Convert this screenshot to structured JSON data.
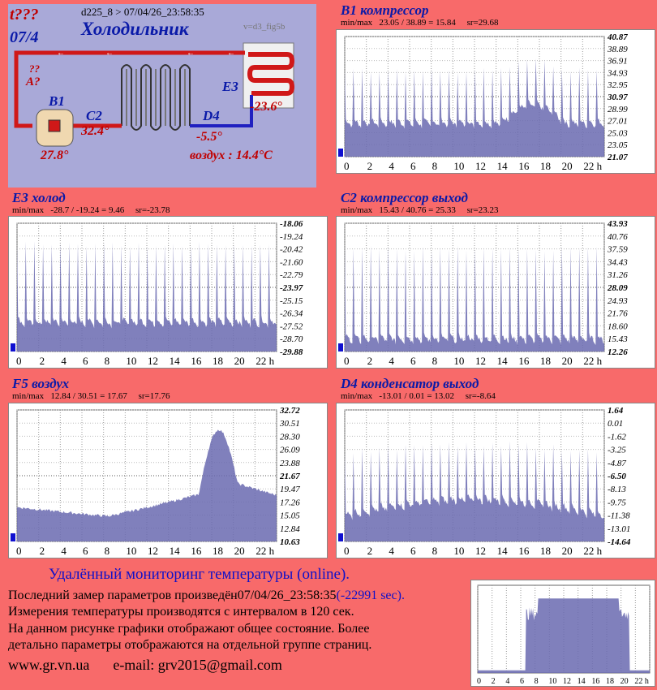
{
  "diagram": {
    "alert": "t???",
    "date": "07/4",
    "device_line": "d225_8  >  07/04/26_23:58:35",
    "version": "v=d3_fig5b",
    "title": "Холодильник",
    "question": "??",
    "a_label": "A?",
    "b1_label": "B1",
    "b1_value": "27.8°",
    "c2_label": "C2",
    "c2_value": "32.4°",
    "d4_label": "D4",
    "d4_value": "-5.5°",
    "e3_label": "E3",
    "e3_value": "-23.6°",
    "air_text": "воздух : 14.4°C",
    "colors": {
      "hot": "#d01818",
      "cold": "#2020c0",
      "bg": "#a9a9d8"
    }
  },
  "panels": [
    {
      "title": "B1 компрессор",
      "stats": "min/max   23.05 / 38.89 = 15.84     sr=29.68",
      "yticks": [
        "40.87",
        "38.89",
        "36.91",
        "34.93",
        "32.95",
        "30.97",
        "28.99",
        "27.01",
        "25.03",
        "23.05",
        "21.07"
      ]
    },
    {
      "title": "E3 холод",
      "stats": "min/max   -28.7 / -19.24 = 9.46     sr=-23.78",
      "yticks": [
        "-18.06",
        "-19.24",
        "-20.42",
        "-21.60",
        "-22.79",
        "-23.97",
        "-25.15",
        "-26.34",
        "-27.52",
        "-28.70",
        "-29.88"
      ]
    },
    {
      "title": "C2 компрессор выход",
      "stats": "min/max   15.43 / 40.76 = 25.33     sr=23.23",
      "yticks": [
        "43.93",
        "40.76",
        "37.59",
        "34.43",
        "31.26",
        "28.09",
        "24.93",
        "21.76",
        "18.60",
        "15.43",
        "12.26"
      ]
    },
    {
      "title": "F5 воздух",
      "stats": "min/max   12.84 / 30.51 = 17.67     sr=17.76",
      "yticks": [
        "32.72",
        "30.51",
        "28.30",
        "26.09",
        "23.88",
        "21.67",
        "19.47",
        "17.26",
        "15.05",
        "12.84",
        "10.63"
      ]
    },
    {
      "title": "D4 конденсатор выход",
      "stats": "min/max   -13.01 / 0.01 = 13.02     sr=-8.64",
      "yticks": [
        "1.64",
        "0.01",
        "-1.62",
        "-3.25",
        "-4.87",
        "-6.50",
        "-8.13",
        "-9.75",
        "-11.38",
        "-13.01",
        "-14.64"
      ]
    }
  ],
  "xticks": [
    "0",
    "2",
    "4",
    "6",
    "8",
    "10",
    "12",
    "14",
    "16",
    "18",
    "20",
    "22 h"
  ],
  "footer": {
    "heading": "Удалённый мониторинг температуры (online).",
    "line1_prefix": "Последний замер параметров произведён07/04/26_23:58:35",
    "line1_secs": "(-22991 sec).",
    "line2": "Измерения температуры  производятся с интервалом в 120 сек.",
    "line3": "На данном рисунке графики отображают общее состояние. Более",
    "line4": "детально параметры отображаются на отдельной группе страниц.",
    "site": "www.gr.vn.ua",
    "email": "e-mail: grv2015@gmail.com"
  },
  "mini_xticks": [
    "0",
    "2",
    "4",
    "6",
    "8",
    "10",
    "12",
    "14",
    "16",
    "18",
    "20",
    "22 h"
  ]
}
